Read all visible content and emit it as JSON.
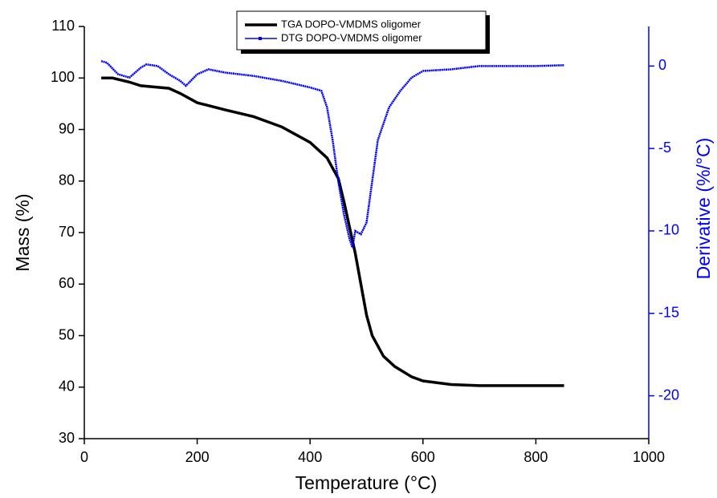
{
  "chart_data": {
    "type": "line",
    "x_label": "Temperature (°C)",
    "y_label": "Mass (%)",
    "y2_label": "Derivative (%/°C)",
    "xlim": [
      0,
      1000
    ],
    "xticks": [
      0,
      200,
      400,
      600,
      800,
      1000
    ],
    "ylim": [
      30,
      110
    ],
    "yticks": [
      30,
      40,
      50,
      60,
      70,
      80,
      90,
      100,
      110
    ],
    "y2lim": [
      -22.6,
      2.4
    ],
    "y2ticks": [
      -20,
      -15,
      -10,
      -5,
      0
    ],
    "y2color": "#0000ff",
    "series": [
      {
        "name": "TGA DOPO-VMDMS oligomer",
        "color": "#000000",
        "x": [
          30,
          50,
          80,
          100,
          150,
          170,
          200,
          250,
          300,
          350,
          400,
          430,
          450,
          460,
          470,
          480,
          490,
          500,
          510,
          530,
          550,
          580,
          600,
          650,
          700,
          750,
          800,
          850
        ],
        "values": [
          100,
          100,
          99.2,
          98.5,
          98,
          97,
          95.2,
          93.8,
          92.5,
          90.5,
          87.5,
          84.5,
          80.5,
          76,
          71,
          66,
          60,
          54,
          50,
          46,
          44,
          42,
          41.2,
          40.5,
          40.3,
          40.3,
          40.3,
          40.3
        ]
      },
      {
        "name": "DTG DOPO-VMDMS oligomer",
        "color": "#0000ff",
        "axis": "y2",
        "x": [
          30,
          40,
          60,
          80,
          100,
          110,
          130,
          150,
          170,
          180,
          200,
          220,
          250,
          300,
          350,
          400,
          420,
          430,
          440,
          450,
          460,
          470,
          475,
          480,
          490,
          500,
          510,
          520,
          540,
          560,
          580,
          600,
          650,
          700,
          800,
          850
        ],
        "values": [
          0.3,
          0.2,
          -0.5,
          -0.7,
          -0.1,
          0.1,
          0,
          -0.5,
          -0.9,
          -1.2,
          -0.5,
          -0.2,
          -0.4,
          -0.6,
          -0.9,
          -1.3,
          -1.5,
          -2.5,
          -4.5,
          -7,
          -9,
          -10.5,
          -11,
          -10,
          -10.2,
          -9.5,
          -7,
          -4.5,
          -2.5,
          -1.5,
          -0.7,
          -0.3,
          -0.2,
          0,
          0,
          0.05
        ]
      }
    ]
  }
}
